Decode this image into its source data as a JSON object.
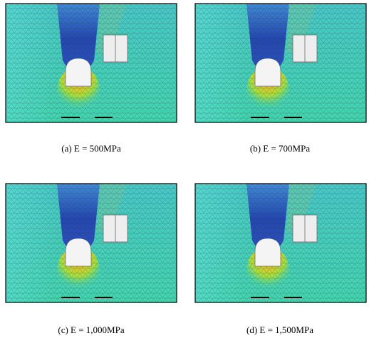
{
  "panels": [
    {
      "caption": "(a)  E = 500MPa"
    },
    {
      "caption": "(b)  E = 700MPa"
    },
    {
      "caption": "(c)  E = 1,000MPa"
    },
    {
      "caption": "(d)  E = 1,500MPa"
    }
  ]
}
